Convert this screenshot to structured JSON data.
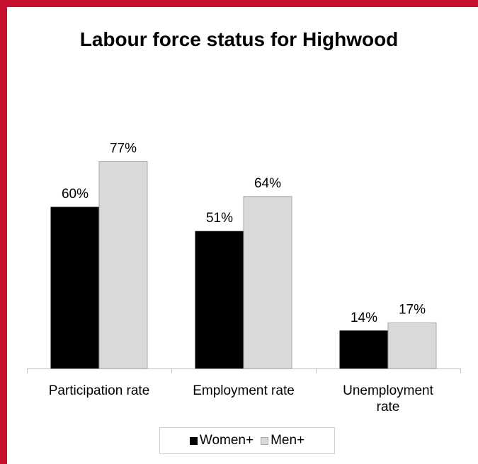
{
  "chart_data": {
    "type": "bar",
    "title": "Labour force status for Highwood",
    "categories": [
      [
        "Participation rate"
      ],
      [
        "Employment rate"
      ],
      [
        "Unemployment",
        "rate"
      ]
    ],
    "series": [
      {
        "name": "Women+",
        "values": [
          60,
          51,
          14
        ],
        "labels": [
          "60%",
          "51%",
          "14%"
        ],
        "color": "#000000",
        "stroke": "#000000"
      },
      {
        "name": "Men+",
        "values": [
          77,
          64,
          17
        ],
        "labels": [
          "77%",
          "64%",
          "17%"
        ],
        "color": "#d9d9d9",
        "stroke": "#a6a6a6"
      }
    ],
    "ylim": [
      0,
      100
    ],
    "grid": false,
    "legend_position": "bottom"
  }
}
